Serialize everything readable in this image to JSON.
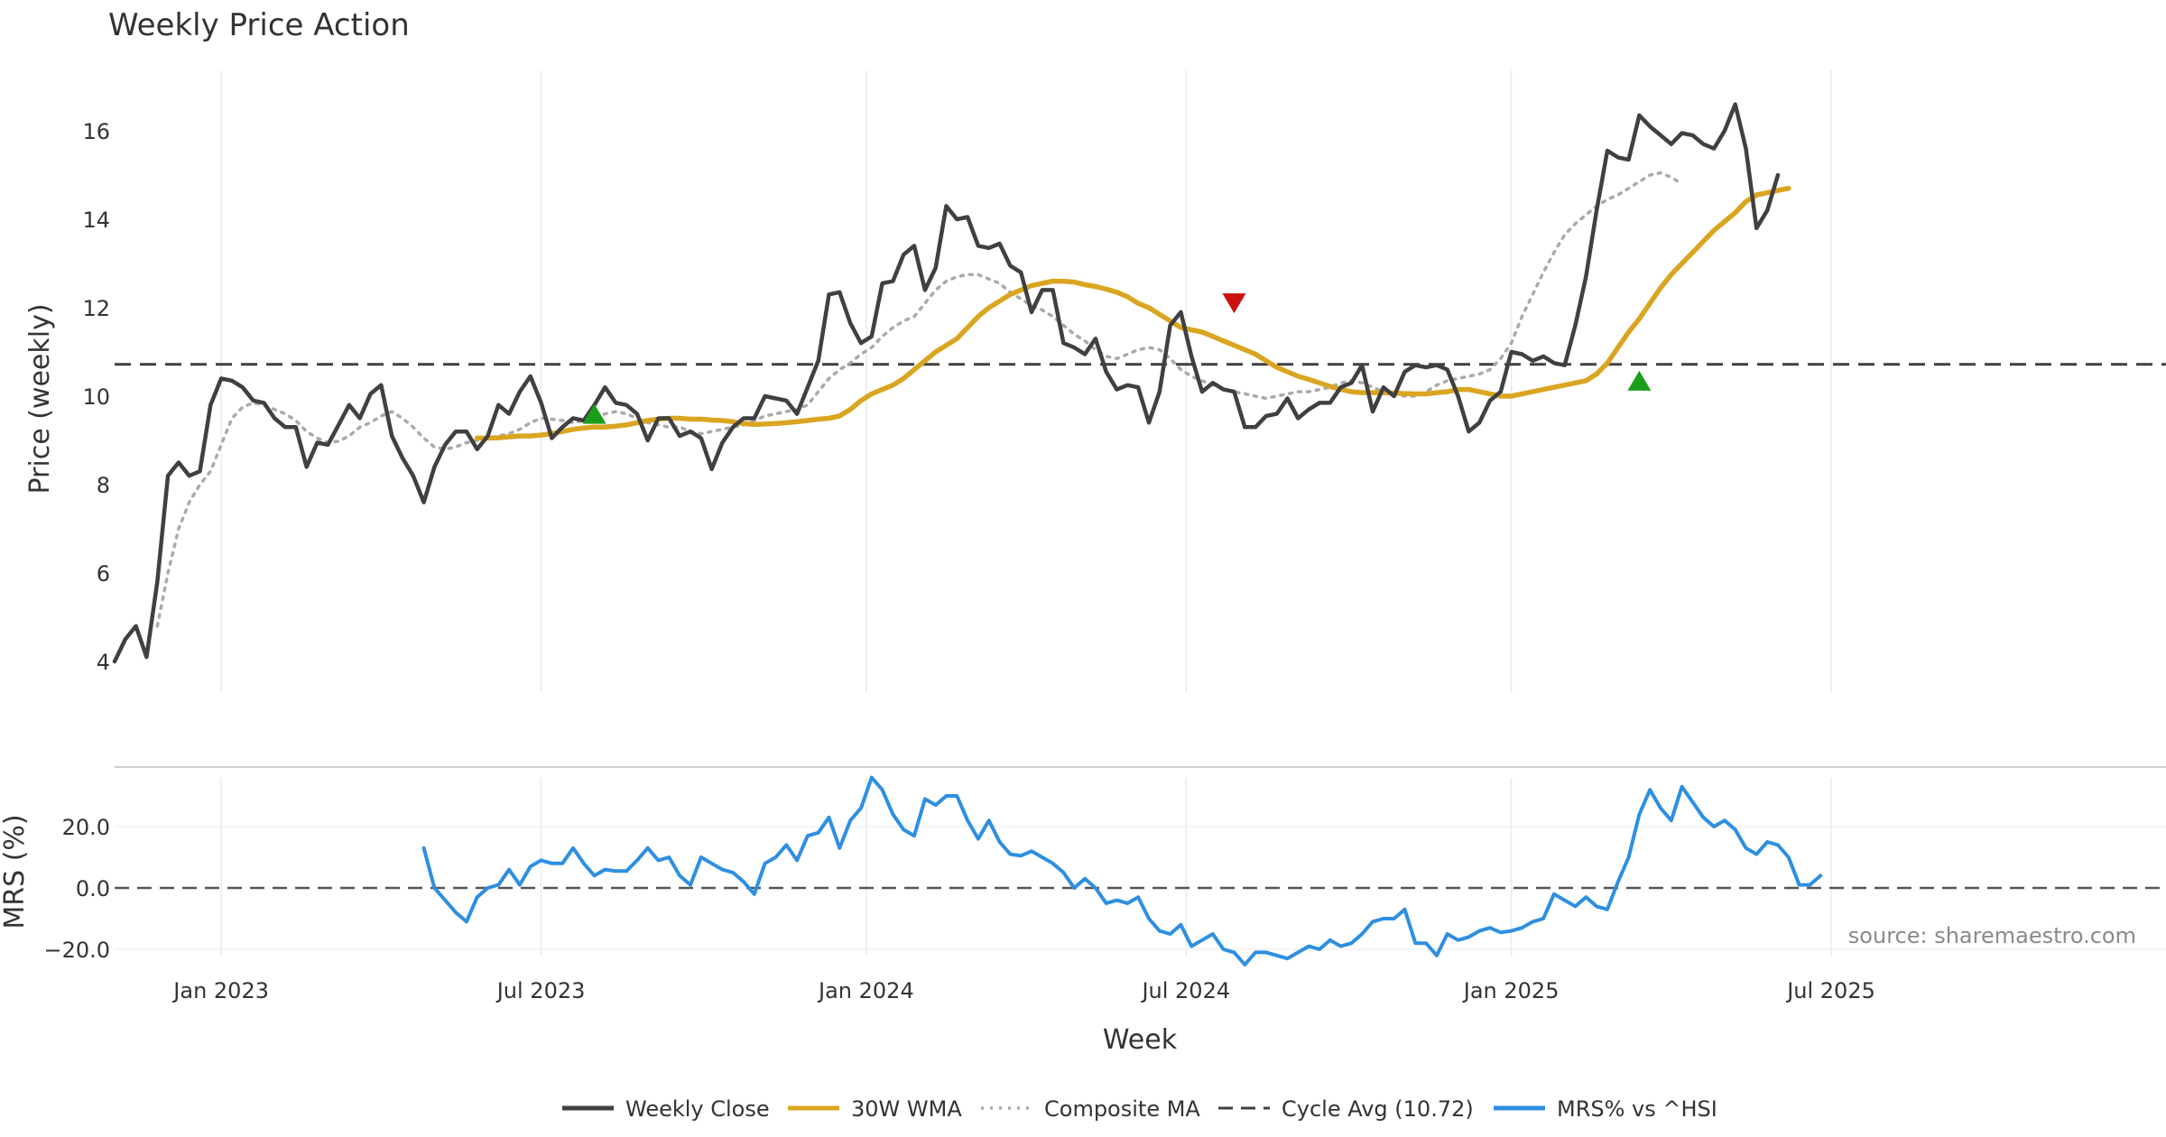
{
  "colors": {
    "weekly_close": "#404040",
    "wma": "#DAA520",
    "composite": "#AAAAAA",
    "cycle_avg": "#404040",
    "mrs": "#2E8FE0",
    "buy_marker": "#1A9E1A",
    "sell_marker": "#CC1111",
    "grid": "#EBEBEB"
  },
  "chart_data": [
    {
      "type": "line",
      "title": "Weekly Price Action",
      "ylabel": "Price (weekly)",
      "xlabel": "",
      "ylim": [
        3.6,
        17.4
      ],
      "yticks": [
        4,
        6,
        8,
        10,
        12,
        14,
        16
      ],
      "x_range": [
        0,
        193
      ],
      "x_unit": "weeks since 2022-11-14",
      "grid": "vertical",
      "series": [
        {
          "name": "Weekly Close",
          "start_week": 0,
          "values": [
            4.0,
            4.5,
            4.8,
            4.1,
            5.8,
            8.2,
            8.5,
            8.2,
            8.3,
            9.8,
            10.4,
            10.35,
            10.2,
            9.9,
            9.85,
            9.5,
            9.3,
            9.3,
            8.4,
            8.95,
            8.9,
            9.35,
            9.8,
            9.5,
            10.05,
            10.25,
            9.1,
            8.6,
            8.2,
            7.6,
            8.4,
            8.9,
            9.2,
            9.2,
            8.8,
            9.1,
            9.8,
            9.6,
            10.1,
            10.45,
            9.85,
            9.05,
            9.3,
            9.5,
            9.45,
            9.8,
            10.2,
            9.85,
            9.8,
            9.6,
            9.0,
            9.5,
            9.5,
            9.1,
            9.2,
            9.05,
            8.35,
            8.95,
            9.3,
            9.5,
            9.5,
            10.0,
            9.95,
            9.9,
            9.6,
            10.2,
            10.8,
            12.3,
            12.35,
            11.65,
            11.2,
            11.35,
            12.55,
            12.6,
            13.2,
            13.4,
            12.4,
            12.9,
            14.3,
            14.0,
            14.05,
            13.4,
            13.35,
            13.45,
            12.95,
            12.8,
            11.9,
            12.4,
            12.4,
            11.2,
            11.1,
            10.95,
            11.3,
            10.55,
            10.15,
            10.25,
            10.2,
            9.4,
            10.1,
            11.6,
            11.9,
            10.9,
            10.1,
            10.3,
            10.15,
            10.1,
            9.3,
            9.3,
            9.55,
            9.6,
            9.95,
            9.5,
            9.7,
            9.85,
            9.85,
            10.2,
            10.3,
            10.7,
            9.65,
            10.2,
            10.0,
            10.55,
            10.7,
            10.65,
            10.7,
            10.6,
            10.0,
            9.2,
            9.4,
            9.9,
            10.1,
            11.0,
            10.95,
            10.8,
            10.9,
            10.75,
            10.7,
            11.6,
            12.7,
            14.2,
            15.55,
            15.4,
            15.35,
            16.35,
            16.1,
            15.9,
            15.7,
            15.95,
            15.9,
            15.7,
            15.6,
            16.0,
            16.6,
            15.6,
            13.8,
            14.2,
            15.0
          ]
        },
        {
          "name": "30W WMA",
          "start_week": 34,
          "values": [
            9.05,
            9.05,
            9.06,
            9.08,
            9.1,
            9.1,
            9.12,
            9.15,
            9.2,
            9.25,
            9.28,
            9.3,
            9.3,
            9.32,
            9.35,
            9.4,
            9.45,
            9.48,
            9.5,
            9.5,
            9.48,
            9.48,
            9.46,
            9.45,
            9.42,
            9.38,
            9.36,
            9.37,
            9.38,
            9.4,
            9.42,
            9.45,
            9.48,
            9.5,
            9.55,
            9.7,
            9.9,
            10.05,
            10.15,
            10.25,
            10.4,
            10.6,
            10.8,
            11.0,
            11.15,
            11.3,
            11.55,
            11.8,
            12.0,
            12.15,
            12.3,
            12.4,
            12.5,
            12.55,
            12.6,
            12.6,
            12.58,
            12.52,
            12.48,
            12.42,
            12.35,
            12.25,
            12.1,
            12.0,
            11.85,
            11.7,
            11.55,
            11.5,
            11.45,
            11.35,
            11.25,
            11.15,
            11.05,
            10.95,
            10.8,
            10.65,
            10.55,
            10.45,
            10.38,
            10.3,
            10.22,
            10.15,
            10.1,
            10.08,
            10.08,
            10.08,
            10.07,
            10.06,
            10.05,
            10.05,
            10.08,
            10.1,
            10.15,
            10.15,
            10.1,
            10.05,
            10.0,
            10.0,
            10.05,
            10.1,
            10.15,
            10.2,
            10.25,
            10.3,
            10.35,
            10.5,
            10.75,
            11.1,
            11.45,
            11.75,
            12.1,
            12.45,
            12.75,
            13.0,
            13.25,
            13.5,
            13.75,
            13.95,
            14.15,
            14.4,
            14.55,
            14.6,
            14.65,
            14.7
          ]
        },
        {
          "name": "Composite MA",
          "start_week": 4,
          "values": [
            4.8,
            6.0,
            7.0,
            7.6,
            8.0,
            8.3,
            8.9,
            9.5,
            9.75,
            9.85,
            9.8,
            9.7,
            9.6,
            9.45,
            9.2,
            9.05,
            8.95,
            8.98,
            9.1,
            9.3,
            9.4,
            9.55,
            9.65,
            9.5,
            9.3,
            9.05,
            8.85,
            8.8,
            8.85,
            8.95,
            9.0,
            9.05,
            9.1,
            9.15,
            9.25,
            9.4,
            9.5,
            9.48,
            9.45,
            9.4,
            9.45,
            9.5,
            9.6,
            9.65,
            9.6,
            9.5,
            9.4,
            9.35,
            9.3,
            9.3,
            9.2,
            9.15,
            9.2,
            9.25,
            9.3,
            9.35,
            9.45,
            9.55,
            9.6,
            9.65,
            9.7,
            9.8,
            10.1,
            10.4,
            10.6,
            10.75,
            10.95,
            11.1,
            11.35,
            11.55,
            11.7,
            11.8,
            12.1,
            12.4,
            12.6,
            12.7,
            12.75,
            12.75,
            12.65,
            12.55,
            12.35,
            12.2,
            12.05,
            11.95,
            11.8,
            11.6,
            11.4,
            11.25,
            11.05,
            10.9,
            10.85,
            10.95,
            11.05,
            11.1,
            11.05,
            10.85,
            10.6,
            10.45,
            10.35,
            10.25,
            10.15,
            10.1,
            10.05,
            10.0,
            9.95,
            10.0,
            10.05,
            10.1,
            10.1,
            10.15,
            10.2,
            10.3,
            10.35,
            10.3,
            10.2,
            10.1,
            10.05,
            10.0,
            10.0,
            10.1,
            10.25,
            10.35,
            10.4,
            10.45,
            10.5,
            10.6,
            10.85,
            11.2,
            11.8,
            12.3,
            12.8,
            13.25,
            13.65,
            13.9,
            14.1,
            14.3,
            14.45,
            14.55,
            14.7,
            14.85,
            15.0,
            15.05,
            14.95,
            14.8
          ]
        }
      ],
      "reference_line": {
        "name": "Cycle Avg (10.72)",
        "value": 10.72
      },
      "annotations": [
        {
          "type": "buy",
          "week": 45,
          "value": 9.6
        },
        {
          "type": "sell",
          "week": 105,
          "value": 12.1
        },
        {
          "type": "buy",
          "week": 143,
          "value": 10.35
        }
      ]
    },
    {
      "type": "line",
      "title": "",
      "ylabel": "MRS (%)",
      "xlabel": "Week",
      "ylim": [
        -25,
        38
      ],
      "yticks": [
        -20,
        0,
        20
      ],
      "ytick_labels": [
        "−20.0",
        "0.0",
        "20.0"
      ],
      "x_range": [
        0,
        193
      ],
      "x_unit": "weeks since 2022-11-14",
      "xticks": [
        {
          "label": "Jan 2023",
          "week": 10
        },
        {
          "label": "Jul 2023",
          "week": 40
        },
        {
          "label": "Jan 2024",
          "week": 70.5
        },
        {
          "label": "Jul 2024",
          "week": 100.5
        },
        {
          "label": "Jan 2025",
          "week": 131
        },
        {
          "label": "Jul 2025",
          "week": 161
        }
      ],
      "grid": "vertical",
      "series": [
        {
          "name": "MRS% vs ^HSI",
          "start_week": 29,
          "values": [
            13,
            0,
            -4,
            -8,
            -11,
            -3,
            0,
            1,
            6,
            1,
            7,
            9,
            8,
            8,
            13,
            8,
            4,
            6,
            5.5,
            5.5,
            9,
            13,
            9,
            10,
            4,
            1,
            10,
            8,
            6,
            5,
            2,
            -2,
            8,
            10,
            14,
            9,
            17,
            18,
            23,
            13,
            22,
            26,
            36,
            32,
            24,
            19,
            17,
            29,
            27,
            30,
            30,
            22,
            16,
            22,
            15,
            11,
            10.5,
            12,
            10,
            8,
            5,
            0,
            3,
            0,
            -5,
            -4,
            -5,
            -3,
            -10,
            -14,
            -15,
            -12,
            -19,
            -17,
            -15,
            -20,
            -21,
            -25,
            -21,
            -21,
            -22,
            -23,
            -21,
            -19,
            -20,
            -17,
            -19,
            -18,
            -15,
            -11,
            -10,
            -10,
            -7,
            -18,
            -18,
            -22,
            -15,
            -17,
            -16,
            -14,
            -13,
            -14.5,
            -14,
            -13,
            -11,
            -10,
            -2,
            -4,
            -6,
            -3,
            -6,
            -7,
            2,
            10,
            24,
            32,
            26,
            22,
            33,
            28,
            23,
            20,
            22,
            19,
            13,
            11,
            15,
            14,
            10,
            1,
            1,
            4
          ]
        }
      ],
      "reference_line": {
        "name": "",
        "value": 0
      }
    }
  ],
  "legend": {
    "placement": "bottom-center",
    "items": [
      {
        "label": "Weekly Close",
        "style": "solid",
        "color": "#404040"
      },
      {
        "label": "30W WMA",
        "style": "solid",
        "color": "#DAA520"
      },
      {
        "label": "Composite MA",
        "style": "dotted",
        "color": "#AAAAAA"
      },
      {
        "label": "Cycle Avg (10.72)",
        "style": "dashed",
        "color": "#404040"
      },
      {
        "label": "MRS% vs ^HSI",
        "style": "solid",
        "color": "#2E8FE0"
      }
    ]
  },
  "source": "source: sharemaestro.com"
}
